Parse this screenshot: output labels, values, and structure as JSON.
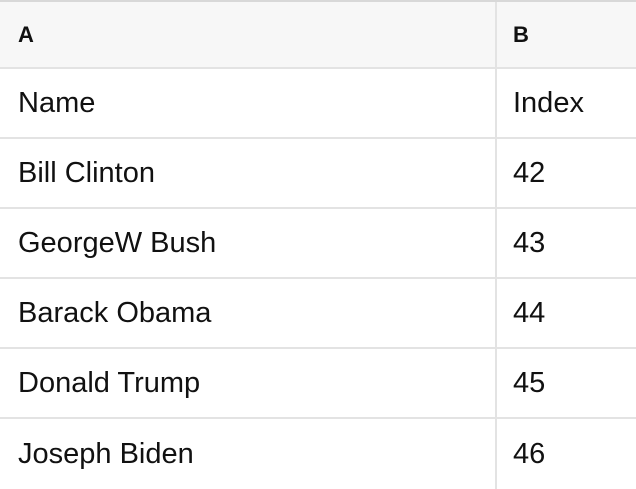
{
  "table": {
    "column_headers": [
      {
        "label": "A"
      },
      {
        "label": "B"
      }
    ],
    "rows": [
      {
        "cells": [
          "Name",
          "Index"
        ]
      },
      {
        "cells": [
          "Bill Clinton",
          "42"
        ]
      },
      {
        "cells": [
          "GeorgeW Bush",
          "43"
        ]
      },
      {
        "cells": [
          "Barack Obama",
          "44"
        ]
      },
      {
        "cells": [
          "Donald Trump",
          "45"
        ]
      },
      {
        "cells": [
          "Joseph Biden",
          "46"
        ]
      }
    ]
  },
  "colors": {
    "top_border": "#d8d8d8",
    "grid_line": "#e3e3e3",
    "header_background": "#f7f7f7",
    "row_background": "#ffffff",
    "text": "#111111"
  }
}
